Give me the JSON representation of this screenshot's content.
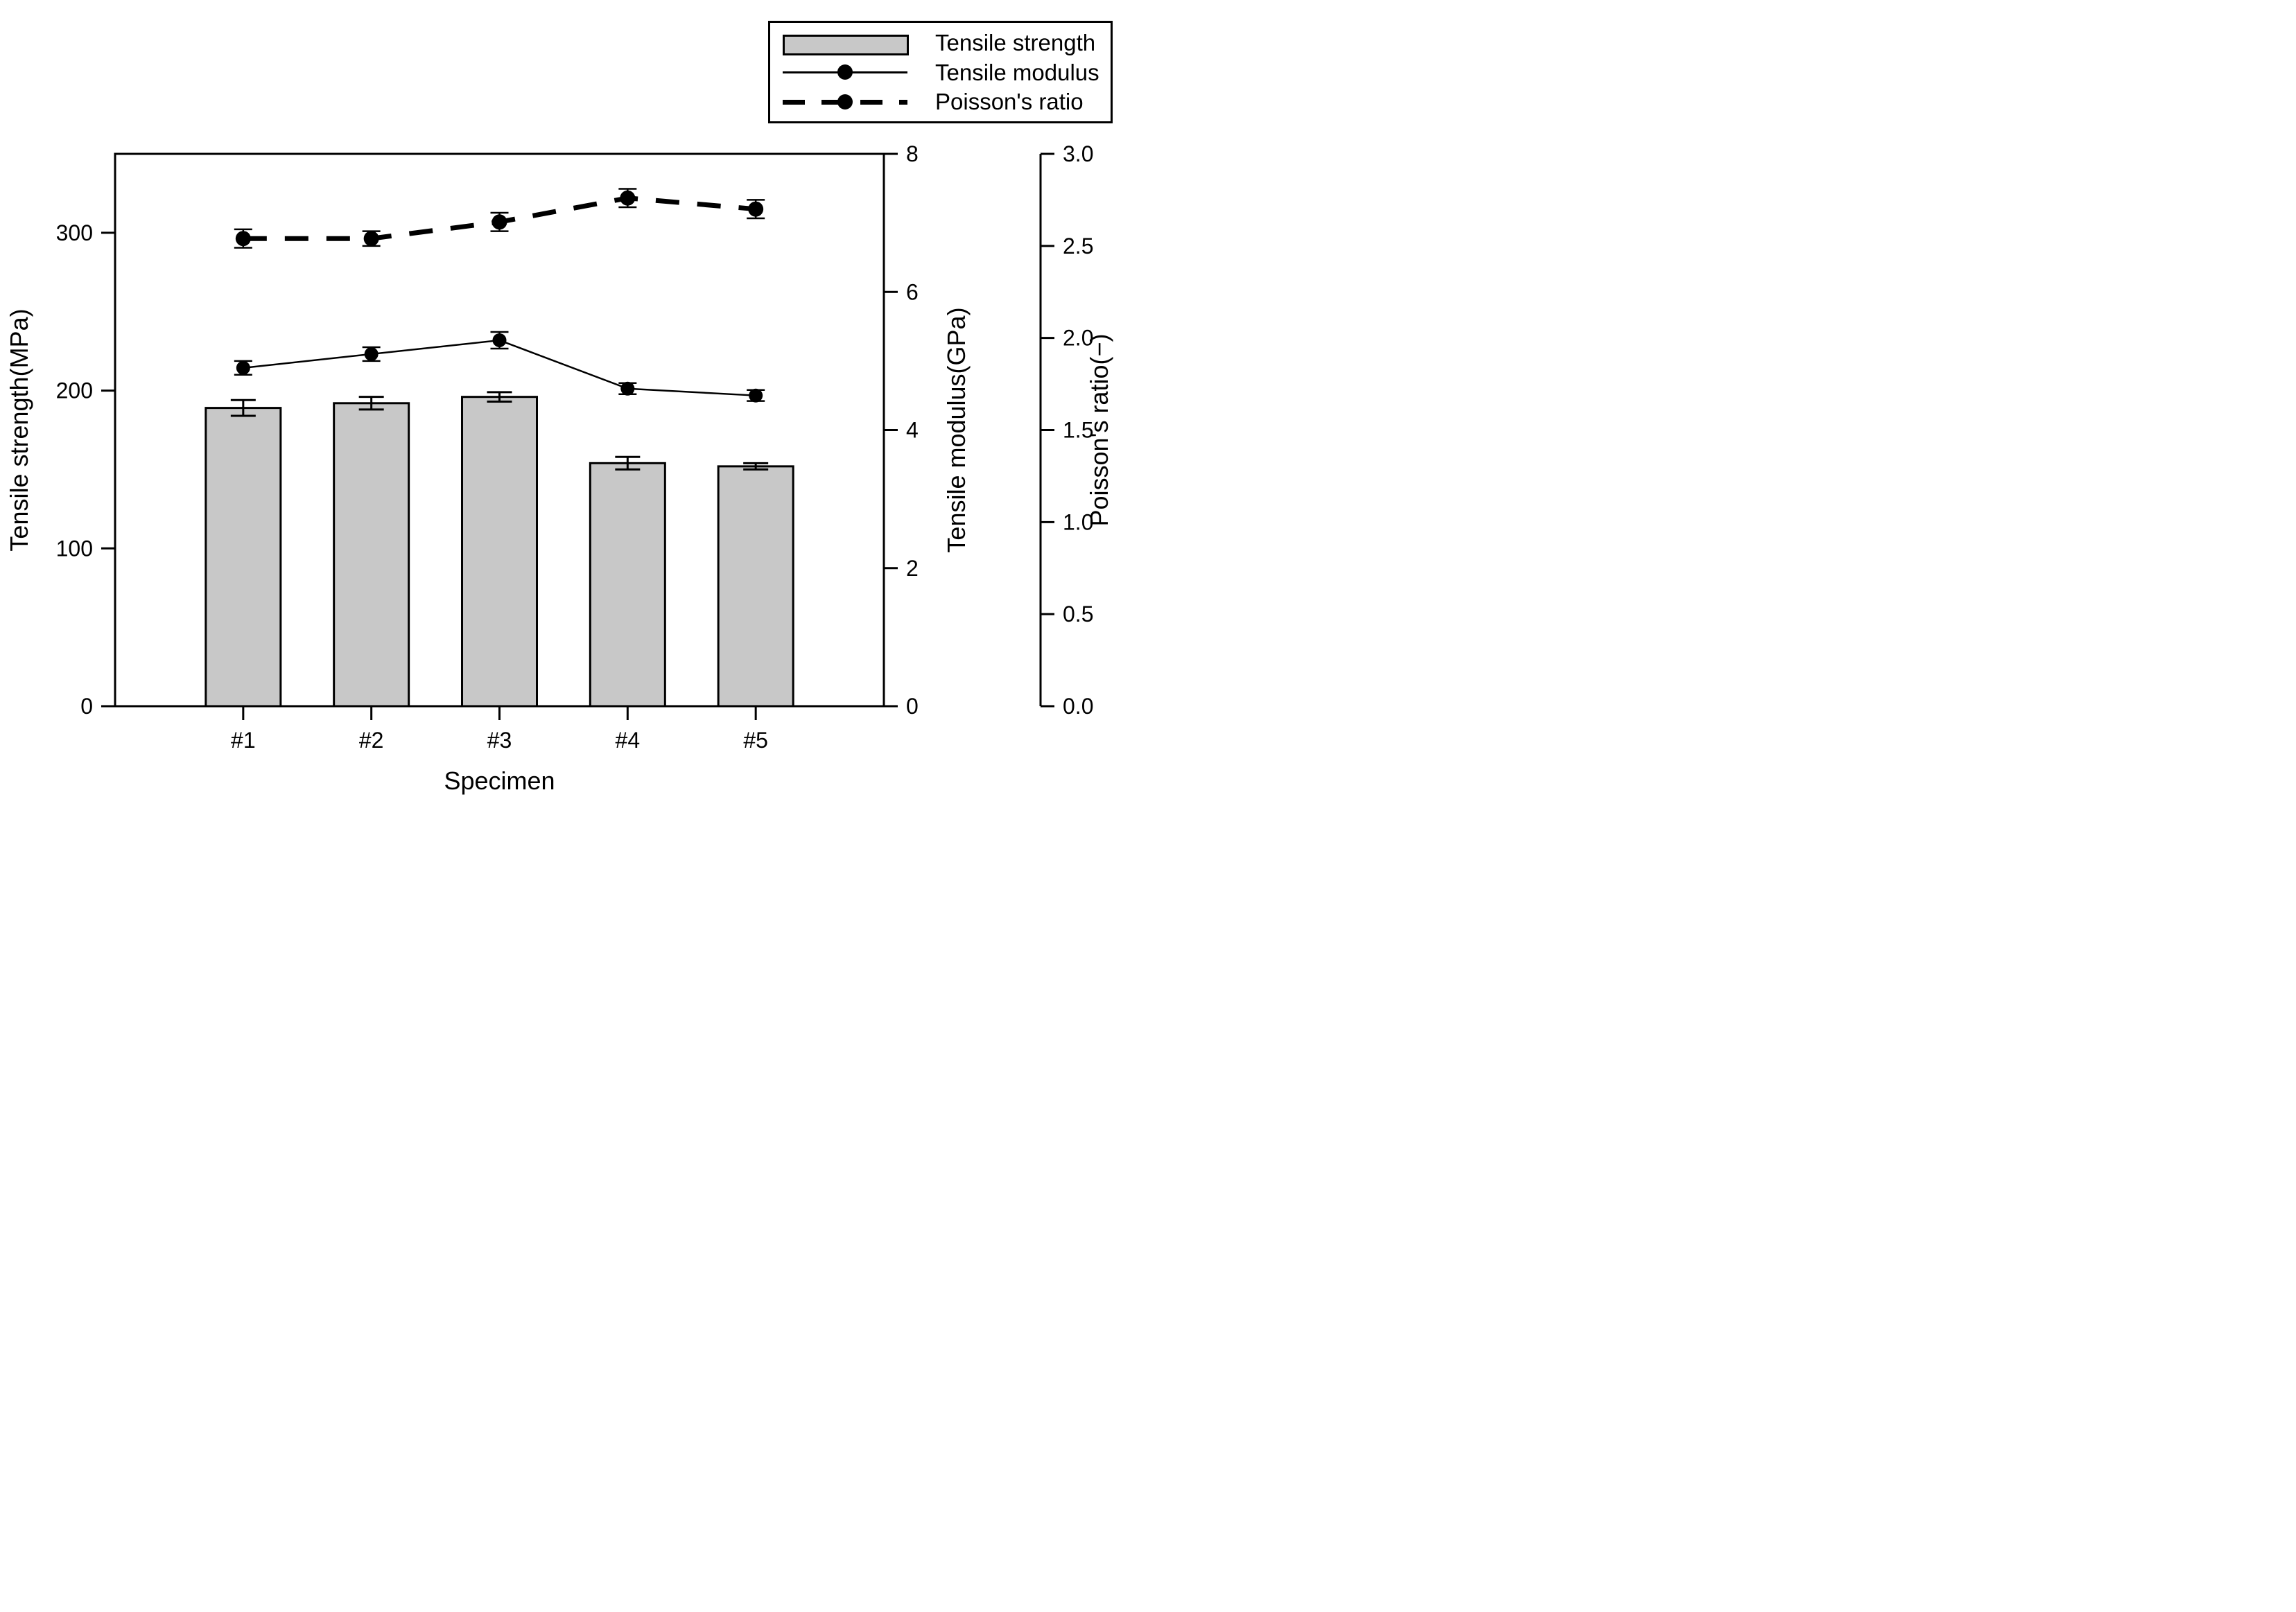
{
  "chart_data": {
    "type": "bar",
    "subtype": "bar-and-lines-multi-axis",
    "categories": [
      "#1",
      "#2",
      "#3",
      "#4",
      "#5"
    ],
    "xlabel": "Specimen",
    "series": [
      {
        "name": "Tensile strength",
        "type": "bar",
        "axis": "left",
        "unit": "MPa",
        "values": [
          189,
          192,
          196,
          154,
          152
        ],
        "errors": [
          5,
          4,
          3,
          4,
          2
        ]
      },
      {
        "name": "Tensile modulus",
        "type": "line",
        "style": "solid",
        "axis": "mid",
        "unit": "GPa",
        "values": [
          4.9,
          5.1,
          5.3,
          4.6,
          4.5
        ],
        "errors": [
          0.1,
          0.1,
          0.12,
          0.08,
          0.08
        ]
      },
      {
        "name": "Poisson's ratio",
        "type": "line",
        "style": "dashed",
        "axis": "right",
        "unit": "-",
        "values": [
          2.54,
          2.54,
          2.63,
          2.76,
          2.7
        ],
        "errors": [
          0.05,
          0.04,
          0.05,
          0.05,
          0.05
        ]
      }
    ],
    "axes": {
      "left": {
        "label": "Tensile strength(MPa)",
        "range": [
          0,
          350
        ],
        "ticks": [
          "0",
          "100",
          "200",
          "300"
        ],
        "tick_values": [
          0,
          100,
          200,
          300
        ]
      },
      "mid": {
        "label": "Tensile modulus(GPa)",
        "range": [
          0,
          8
        ],
        "ticks": [
          "0",
          "2",
          "4",
          "6",
          "8"
        ],
        "tick_values": [
          0,
          2,
          4,
          6,
          8
        ]
      },
      "right": {
        "label": "Poisson's ratio(−)",
        "range": [
          0,
          3
        ],
        "ticks": [
          "0.0",
          "0.5",
          "1.0",
          "1.5",
          "2.0",
          "2.5",
          "3.0"
        ],
        "tick_values": [
          0,
          0.5,
          1,
          1.5,
          2,
          2.5,
          3
        ]
      }
    },
    "legend_position": "top-right",
    "grid": false,
    "colors": {
      "bar_fill": "#c8c8c8",
      "line": "#000000",
      "frame": "#000000",
      "background": "#ffffff"
    }
  }
}
